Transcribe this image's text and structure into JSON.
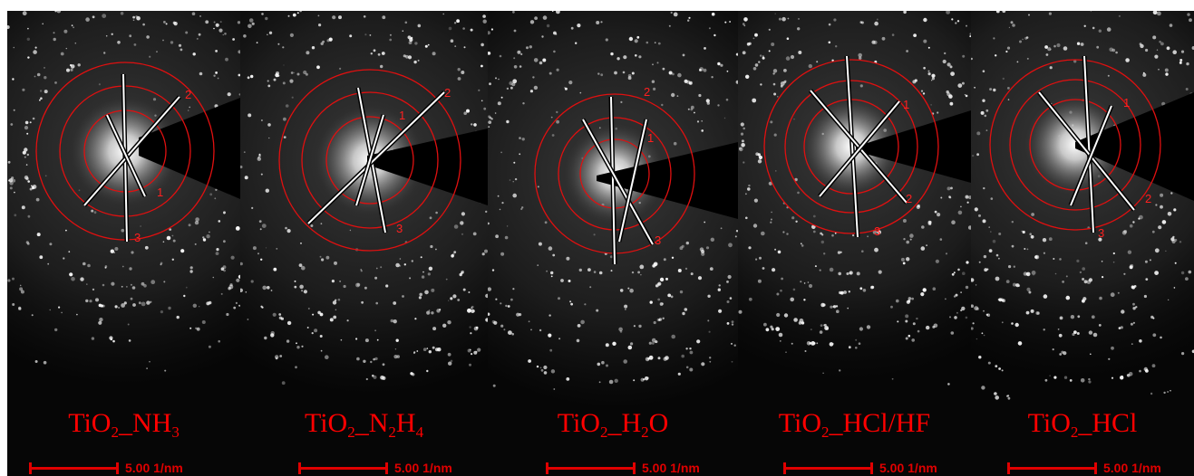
{
  "panels": [
    {
      "id": "nh3",
      "label": {
        "prefix": "TiO",
        "sub1": "2",
        "mid": "_NH",
        "sub2": "3",
        "tail": ""
      },
      "ring_labels": [
        "1",
        "2",
        "3"
      ],
      "scale_bar": "5.00 1/nm"
    },
    {
      "id": "n2h4",
      "label": {
        "prefix": "TiO",
        "sub1": "2",
        "mid": "_N",
        "sub2": "2",
        "tail": "H",
        "sub3": "4"
      },
      "ring_labels": [
        "1",
        "2",
        "3"
      ],
      "scale_bar": "5.00 1/nm"
    },
    {
      "id": "h2o",
      "label": {
        "prefix": "TiO",
        "sub1": "2",
        "mid": "_H",
        "sub2": "2",
        "tail": "O"
      },
      "ring_labels": [
        "1",
        "2",
        "3"
      ],
      "scale_bar": "5.00 1/nm"
    },
    {
      "id": "hclhf",
      "label": {
        "prefix": "TiO",
        "sub1": "2",
        "mid": "_HCl/HF",
        "sub2": "",
        "tail": ""
      },
      "ring_labels": [
        "1",
        "2",
        "3"
      ],
      "scale_bar": "5.00 1/nm"
    },
    {
      "id": "hcl",
      "label": {
        "prefix": "TiO",
        "sub1": "2",
        "mid": "_HCl",
        "sub2": "",
        "tail": ""
      },
      "ring_labels": [
        "1",
        "2",
        "3"
      ],
      "scale_bar": "5.00 1/nm"
    }
  ],
  "colors": {
    "annotation": "#ff0000",
    "background": "#050505",
    "diffraction": "#ffffff"
  }
}
